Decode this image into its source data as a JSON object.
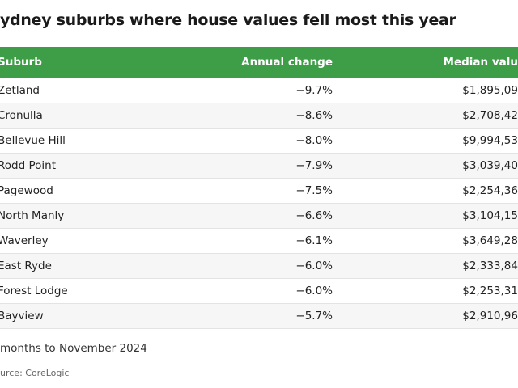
{
  "title": "ydney suburbs where house values fell most this year",
  "table": {
    "header": [
      "Suburb",
      "Annual change",
      "Median valu"
    ],
    "rows": [
      [
        "Zetland",
        "−9.7%",
        "$1,895,09"
      ],
      [
        "Cronulla",
        "−8.6%",
        "$2,708,42"
      ],
      [
        "Bellevue Hill",
        "−8.0%",
        "$9,994,53"
      ],
      [
        "Rodd Point",
        "−7.9%",
        "$3,039,40"
      ],
      [
        "Pagewood",
        "−7.5%",
        "$2,254,36"
      ],
      [
        "North Manly",
        "−6.6%",
        "$3,104,15"
      ],
      [
        "Waverley",
        "−6.1%",
        "$3,649,28"
      ],
      [
        "East Ryde",
        "−6.0%",
        "$2,333,84"
      ],
      [
        "Forest Lodge",
        "−6.0%",
        "$2,253,31"
      ],
      [
        "Bayview",
        "−5.7%",
        "$2,910,96"
      ]
    ]
  },
  "note": "months to November 2024",
  "source": "urce: CoreLogic"
}
